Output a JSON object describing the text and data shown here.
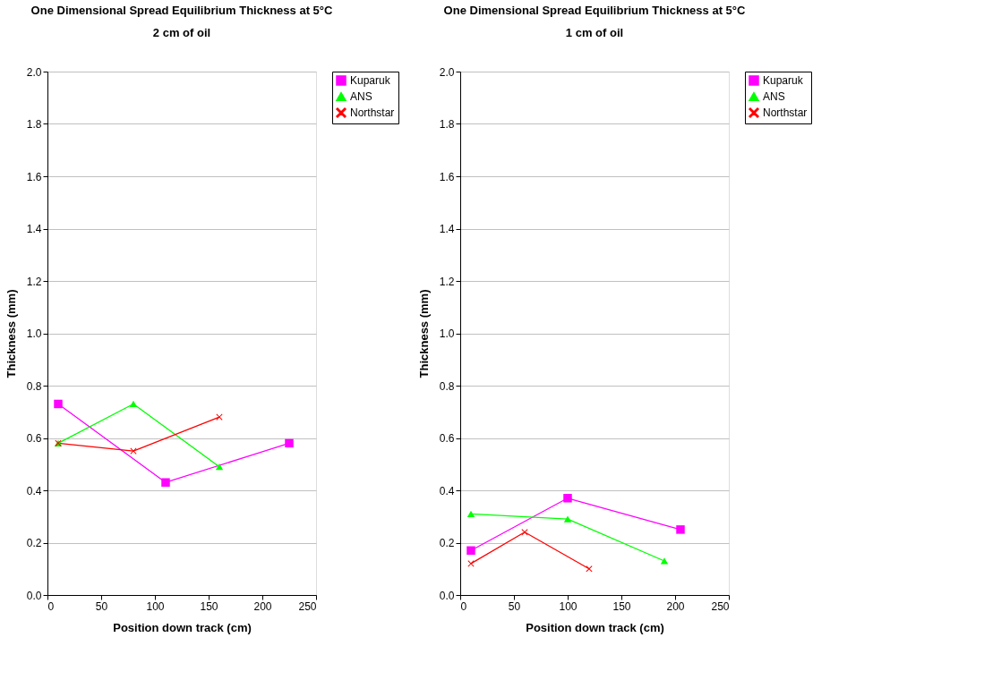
{
  "chart_data": [
    {
      "type": "line",
      "title": "One Dimensional Spread Equilibrium Thickness at 5°C",
      "subtitle": "2 cm of oil",
      "xlabel": "Position down track (cm)",
      "ylabel": "Thickness (mm)",
      "xlim": [
        0,
        250
      ],
      "xticks": [
        0,
        50,
        100,
        150,
        200,
        250
      ],
      "ylim": [
        0,
        2
      ],
      "yticks": [
        {
          "value": 0,
          "label": "0.0"
        },
        {
          "value": 0.2,
          "label": "0.2"
        },
        {
          "value": 0.4,
          "label": "0.4"
        },
        {
          "value": 0.6,
          "label": "0.6"
        },
        {
          "value": 0.8,
          "label": "0.8"
        },
        {
          "value": 1,
          "label": "1.0"
        },
        {
          "value": 1.2,
          "label": "1.2"
        },
        {
          "value": 1.4,
          "label": "1.4"
        },
        {
          "value": 1.6,
          "label": "1.6"
        },
        {
          "value": 1.8,
          "label": "1.8"
        },
        {
          "value": 2,
          "label": "2.0"
        }
      ],
      "grid": "y",
      "legend": "right",
      "series": [
        {
          "name": "Kuparuk",
          "color": "#ff00ff",
          "marker": "square",
          "x": [
            10,
            110,
            225
          ],
          "values": [
            0.73,
            0.43,
            0.58
          ]
        },
        {
          "name": "ANS",
          "color": "#00ff00",
          "marker": "triangle",
          "x": [
            10,
            80,
            160
          ],
          "values": [
            0.58,
            0.73,
            0.49
          ]
        },
        {
          "name": "Northstar",
          "color": "#ff0000",
          "marker": "cross",
          "x": [
            10,
            80,
            160
          ],
          "values": [
            0.58,
            0.55,
            0.68
          ]
        }
      ]
    },
    {
      "type": "line",
      "title": "One Dimensional Spread Equilibrium Thickness at 5°C",
      "subtitle": "1 cm of oil",
      "xlabel": "Position down track (cm)",
      "ylabel": "Thickness (mm)",
      "xlim": [
        0,
        250
      ],
      "xticks": [
        0,
        50,
        100,
        150,
        200,
        250
      ],
      "ylim": [
        0,
        2
      ],
      "yticks": [
        {
          "value": 0,
          "label": "0.0"
        },
        {
          "value": 0.2,
          "label": "0.2"
        },
        {
          "value": 0.4,
          "label": "0.4"
        },
        {
          "value": 0.6,
          "label": "0.6"
        },
        {
          "value": 0.8,
          "label": "0.8"
        },
        {
          "value": 1,
          "label": "1.0"
        },
        {
          "value": 1.2,
          "label": "1.2"
        },
        {
          "value": 1.4,
          "label": "1.4"
        },
        {
          "value": 1.6,
          "label": "1.6"
        },
        {
          "value": 1.8,
          "label": "1.8"
        },
        {
          "value": 2,
          "label": "2.0"
        }
      ],
      "grid": "y",
      "legend": "right",
      "series": [
        {
          "name": "Kuparuk",
          "color": "#ff00ff",
          "marker": "square",
          "x": [
            10,
            100,
            205
          ],
          "values": [
            0.17,
            0.37,
            0.25
          ]
        },
        {
          "name": "ANS",
          "color": "#00ff00",
          "marker": "triangle",
          "x": [
            10,
            100,
            190
          ],
          "values": [
            0.31,
            0.29,
            0.13
          ]
        },
        {
          "name": "Northstar",
          "color": "#ff0000",
          "marker": "cross",
          "x": [
            10,
            60,
            120
          ],
          "values": [
            0.12,
            0.24,
            0.1
          ]
        }
      ]
    }
  ]
}
